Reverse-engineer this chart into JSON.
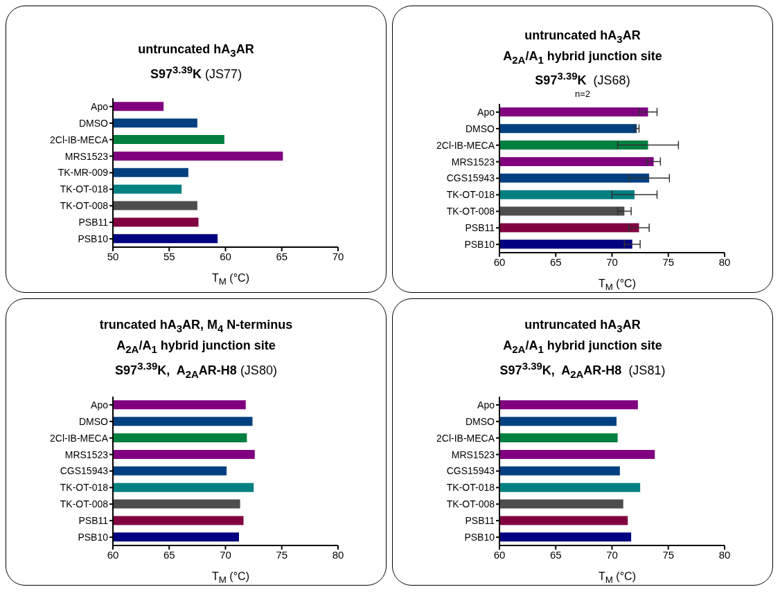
{
  "chart_data": [
    {
      "type": "bar",
      "orientation": "horizontal",
      "title": "untruncated hA$_{3}$AR\nS97$^{3.39}$K (JS77)",
      "xlabel": "T$_{M}$ (°C)",
      "categories": [
        "Apo",
        "DMSO",
        "2Cl-IB-MECA",
        "MRS1523",
        "TK-MR-009",
        "TK-OT-018",
        "TK-OT-008",
        "PSB11",
        "PSB10"
      ],
      "values": [
        54.5,
        57.5,
        59.9,
        65.1,
        56.7,
        56.1,
        57.5,
        57.6,
        59.3
      ],
      "colors": [
        "#800080",
        "#004080",
        "#008040",
        "#800080",
        "#004080",
        "#008080",
        "#4d4d4d",
        "#800040",
        "#000080"
      ],
      "xlim": [
        50,
        70
      ],
      "xticks": [
        50,
        55,
        60,
        65,
        70
      ]
    },
    {
      "type": "bar",
      "orientation": "horizontal",
      "title": "untruncated hA$_{3}$AR\nA$_{2A}$/A$_{1}$ hybrid junction site\nS97$^{3.39}$K  (JS68)",
      "subtitle": "n=2",
      "xlabel": "T$_{M}$ (°C)",
      "categories": [
        "Apo",
        "DMSO",
        "2Cl-IB-MECA",
        "MRS1523",
        "CGS15943",
        "TK-OT-018",
        "TK-OT-008",
        "PSB11",
        "PSB10"
      ],
      "values": [
        73.2,
        72.2,
        73.2,
        73.7,
        73.3,
        72.0,
        71.1,
        72.4,
        71.8
      ],
      "errors": [
        0.8,
        0.2,
        2.7,
        0.6,
        1.8,
        2.0,
        0.6,
        0.9,
        0.7
      ],
      "colors": [
        "#800080",
        "#004080",
        "#008040",
        "#800080",
        "#004080",
        "#008080",
        "#4d4d4d",
        "#800040",
        "#000080"
      ],
      "xlim": [
        60,
        80
      ],
      "xticks": [
        60,
        65,
        70,
        75,
        80
      ]
    },
    {
      "type": "bar",
      "orientation": "horizontal",
      "title": "truncated hA$_{3}$AR, M$_{4}$ N-terminus\nA$_{2A}$/A$_{1}$ hybrid junction site\nS97$^{3.39}$K,  A$_{2A}$AR-H8 (JS80)",
      "xlabel": "T$_{M}$ (°C)",
      "categories": [
        "Apo",
        "DMSO",
        "2Cl-IB-MECA",
        "MRS1523",
        "CGS15943",
        "TK-OT-018",
        "TK-OT-008",
        "PSB11",
        "PSB10"
      ],
      "values": [
        71.8,
        72.4,
        71.9,
        72.6,
        70.1,
        72.5,
        71.3,
        71.6,
        71.2
      ],
      "colors": [
        "#800080",
        "#004080",
        "#008040",
        "#800080",
        "#004080",
        "#008080",
        "#4d4d4d",
        "#800040",
        "#000080"
      ],
      "xlim": [
        60,
        80
      ],
      "xticks": [
        60,
        65,
        70,
        75,
        80
      ]
    },
    {
      "type": "bar",
      "orientation": "horizontal",
      "title": "untruncated hA$_{3}$AR\nA$_{2A}$/A$_{1}$ hybrid junction site\nS97$^{3.39}$K,  A$_{2A}$AR-H8  (JS81)",
      "xlabel": "T$_{M}$ (°C)",
      "categories": [
        "Apo",
        "DMSO",
        "2Cl-IB-MECA",
        "MRS1523",
        "CGS15943",
        "TK-OT-018",
        "TK-OT-008",
        "PSB11",
        "PSB10"
      ],
      "values": [
        72.3,
        70.4,
        70.5,
        73.8,
        70.7,
        72.5,
        71.0,
        71.4,
        71.7
      ],
      "colors": [
        "#800080",
        "#004080",
        "#008040",
        "#800080",
        "#004080",
        "#008080",
        "#4d4d4d",
        "#800040",
        "#000080"
      ],
      "xlim": [
        60,
        80
      ],
      "xticks": [
        60,
        65,
        70,
        75,
        80
      ]
    }
  ]
}
